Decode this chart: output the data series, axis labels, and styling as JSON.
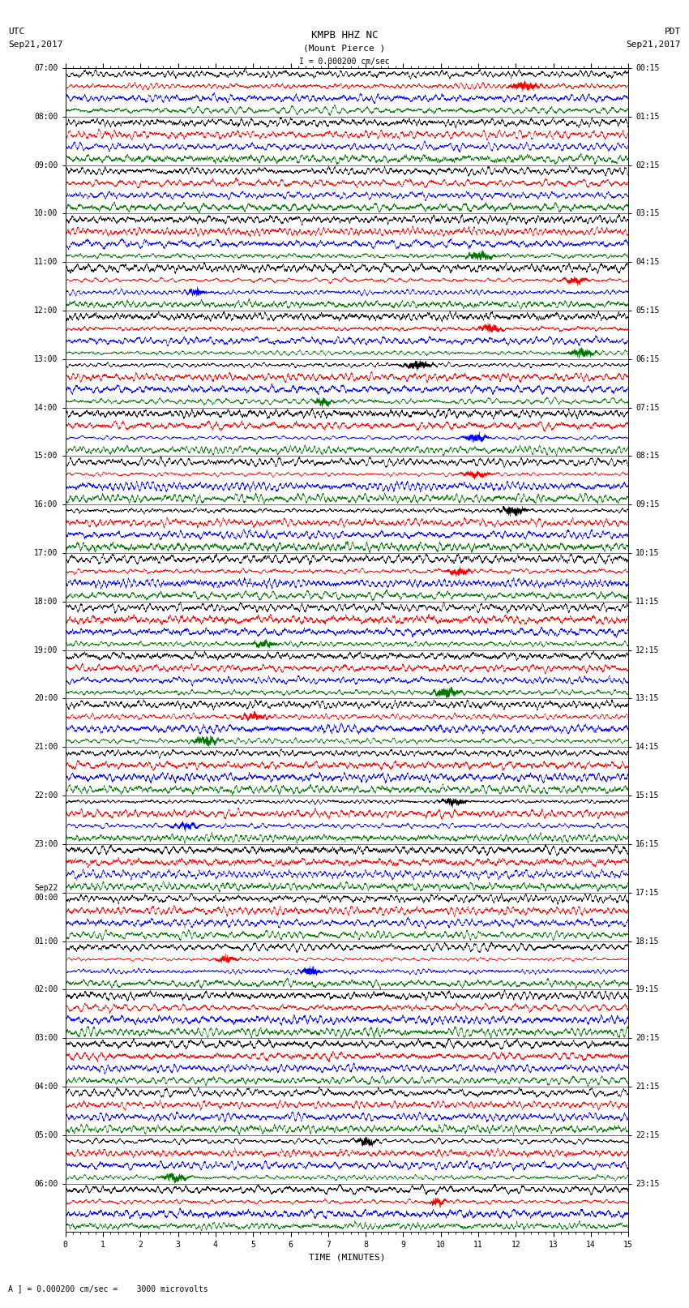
{
  "title_line1": "KMPB HHZ NC",
  "title_line2": "(Mount Pierce )",
  "scale_text": "I = 0.000200 cm/sec",
  "bottom_scale_text": "A ] = 0.000200 cm/sec =    3000 microvolts",
  "utc_label": "UTC",
  "utc_date": "Sep21,2017",
  "pdt_label": "PDT",
  "pdt_date": "Sep21,2017",
  "xlabel": "TIME (MINUTES)",
  "left_times_utc": [
    "07:00",
    "08:00",
    "09:00",
    "10:00",
    "11:00",
    "12:00",
    "13:00",
    "14:00",
    "15:00",
    "16:00",
    "17:00",
    "18:00",
    "19:00",
    "20:00",
    "21:00",
    "22:00",
    "23:00",
    "Sep22\n00:00",
    "01:00",
    "02:00",
    "03:00",
    "04:00",
    "05:00",
    "06:00"
  ],
  "right_times_pdt": [
    "00:15",
    "01:15",
    "02:15",
    "03:15",
    "04:15",
    "05:15",
    "06:15",
    "07:15",
    "08:15",
    "09:15",
    "10:15",
    "11:15",
    "12:15",
    "13:15",
    "14:15",
    "15:15",
    "16:15",
    "17:15",
    "18:15",
    "19:15",
    "20:15",
    "21:15",
    "22:15",
    "23:15"
  ],
  "n_rows": 24,
  "n_traces_per_row": 4,
  "trace_colors": [
    "#000000",
    "#ff0000",
    "#0000ff",
    "#007700"
  ],
  "time_minutes": 15,
  "background_color": "#ffffff",
  "fig_width": 8.5,
  "fig_height": 16.13,
  "dpi": 100,
  "xtick_positions": [
    0,
    1,
    2,
    3,
    4,
    5,
    6,
    7,
    8,
    9,
    10,
    11,
    12,
    13,
    14,
    15
  ],
  "font_size_title": 9,
  "font_size_labels": 8,
  "font_size_ticks": 7,
  "font_family": "monospace"
}
